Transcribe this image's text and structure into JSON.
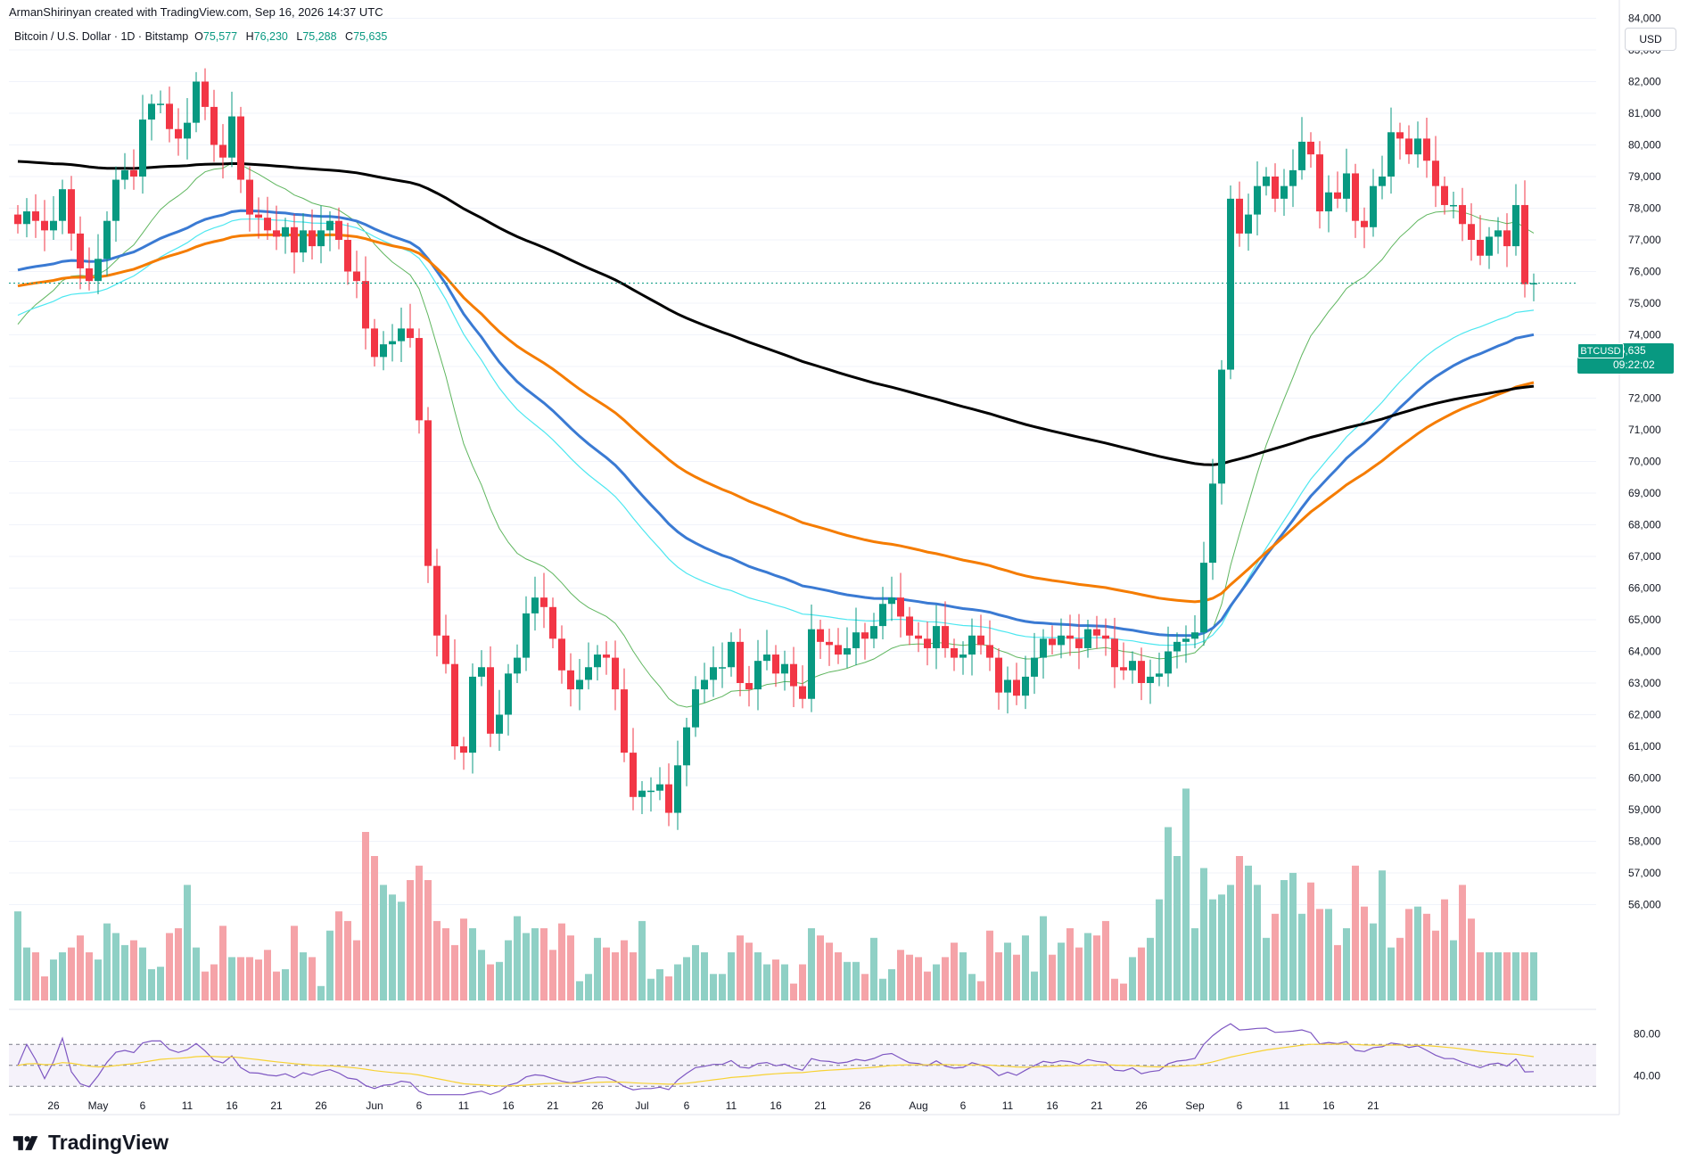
{
  "header": {
    "author_line": "ArmanShirinyan created with TradingView.com, Sep 16, 2026 14:37 UTC",
    "symbol_desc": "Bitcoin / U.S. Dollar · 1D · Bitstamp",
    "o_label": "O",
    "o_value": "75,577",
    "h_label": "H",
    "h_value": "76,230",
    "l_label": "L",
    "l_value": "75,288",
    "c_label": "C",
    "c_value": "75,635"
  },
  "currency_button": "USD",
  "price_tag": {
    "symbol": "BTCUSD",
    "price": "75,635",
    "countdown": "09:22:02"
  },
  "brand": "TradingView",
  "colors": {
    "up": "#089981",
    "down": "#f23645",
    "vol_up": "#8fd0c5",
    "vol_down": "#f5a3a8",
    "sma200": "#000000",
    "ema_blue": "#3a7ad3",
    "ema_orange": "#f57c00",
    "ma_cyan": "#4de7f0",
    "ma_green": "#5fb65f",
    "rsi": "#7e57c2",
    "rsi_ma": "#f7d233"
  },
  "chart_data": {
    "type": "candlestick",
    "price_axis": {
      "ticks": [
        84000,
        83000,
        82000,
        81000,
        80000,
        79000,
        78000,
        77000,
        76000,
        75000,
        74000,
        73000,
        72000,
        71000,
        70000,
        69000,
        68000,
        67000,
        66000,
        65000,
        64000,
        63000,
        62000,
        61000,
        60000,
        59000,
        58000,
        57000,
        56000
      ],
      "tick_labels": [
        "84,000",
        "83,000",
        "82,000",
        "81,000",
        "80,000",
        "79,000",
        "78,000",
        "77,000",
        "76,000",
        "75,000",
        "74,000",
        "73,000",
        "72,000",
        "71,000",
        "70,000",
        "69,000",
        "68,000",
        "67,000",
        "66,000",
        "65,000",
        "64,000",
        "63,000",
        "62,000",
        "61,000",
        "60,000",
        "59,000",
        "58,000",
        "57,000",
        "56,000"
      ]
    },
    "time_axis": {
      "labels": [
        "26",
        "May",
        "6",
        "11",
        "16",
        "21",
        "26",
        "Jun",
        "6",
        "11",
        "16",
        "21",
        "26",
        "Jul",
        "6",
        "11",
        "16",
        "21",
        "26",
        "Aug",
        "6",
        "11",
        "16",
        "21",
        "26",
        "Sep",
        "6",
        "11",
        "16",
        "21"
      ],
      "label_days": [
        -5,
        0,
        5,
        10,
        15,
        20,
        25,
        31,
        36,
        41,
        46,
        51,
        56,
        61,
        66,
        71,
        76,
        81,
        86,
        92,
        97,
        102,
        107,
        112,
        117,
        123,
        128,
        133,
        138,
        143
      ]
    },
    "rsi_axis": {
      "ticks": [
        80,
        40
      ],
      "tick_labels": [
        "80.00",
        "40.00"
      ],
      "bands": [
        70,
        50,
        30
      ]
    },
    "ohlc_close_path": [
      [
        -9,
        77500
      ],
      [
        -8,
        77900
      ],
      [
        -7,
        77600
      ],
      [
        -6,
        77300
      ],
      [
        -5,
        77600
      ],
      [
        -4,
        78600
      ],
      [
        -3,
        77200
      ],
      [
        -2,
        76100
      ],
      [
        -1,
        75700
      ],
      [
        0,
        76400
      ],
      [
        1,
        77600
      ],
      [
        2,
        78900
      ],
      [
        3,
        79200
      ],
      [
        4,
        79000
      ],
      [
        5,
        80800
      ],
      [
        6,
        81300
      ],
      [
        7,
        81300
      ],
      [
        8,
        80500
      ],
      [
        9,
        80200
      ],
      [
        10,
        80700
      ],
      [
        11,
        82000
      ],
      [
        12,
        81200
      ],
      [
        13,
        80000
      ],
      [
        14,
        79600
      ],
      [
        15,
        80900
      ],
      [
        16,
        78900
      ],
      [
        17,
        77800
      ],
      [
        18,
        77700
      ],
      [
        19,
        77300
      ],
      [
        20,
        77100
      ],
      [
        21,
        77400
      ],
      [
        22,
        76600
      ],
      [
        23,
        77300
      ],
      [
        24,
        76800
      ],
      [
        25,
        77300
      ],
      [
        26,
        77600
      ],
      [
        27,
        77000
      ],
      [
        28,
        76000
      ],
      [
        29,
        75700
      ],
      [
        30,
        74200
      ],
      [
        31,
        73300
      ],
      [
        32,
        73700
      ],
      [
        33,
        73800
      ],
      [
        34,
        74200
      ],
      [
        35,
        73900
      ],
      [
        36,
        71300
      ],
      [
        37,
        66700
      ],
      [
        38,
        64500
      ],
      [
        39,
        63600
      ],
      [
        40,
        61000
      ],
      [
        41,
        60800
      ],
      [
        42,
        63200
      ],
      [
        43,
        63500
      ],
      [
        44,
        61400
      ],
      [
        45,
        62000
      ],
      [
        46,
        63300
      ],
      [
        47,
        63800
      ],
      [
        48,
        65200
      ],
      [
        49,
        65700
      ],
      [
        50,
        65400
      ],
      [
        51,
        64400
      ],
      [
        52,
        63400
      ],
      [
        53,
        62800
      ],
      [
        54,
        63100
      ],
      [
        55,
        63500
      ],
      [
        56,
        63900
      ],
      [
        57,
        63800
      ],
      [
        58,
        62800
      ],
      [
        59,
        60800
      ],
      [
        60,
        59400
      ],
      [
        61,
        59600
      ],
      [
        62,
        59600
      ],
      [
        63,
        59800
      ],
      [
        64,
        58900
      ],
      [
        65,
        60400
      ],
      [
        66,
        61600
      ],
      [
        67,
        62800
      ],
      [
        68,
        63100
      ],
      [
        69,
        63500
      ],
      [
        70,
        63500
      ],
      [
        71,
        64300
      ],
      [
        72,
        63000
      ],
      [
        73,
        62800
      ],
      [
        74,
        63700
      ],
      [
        75,
        63900
      ],
      [
        76,
        63300
      ],
      [
        77,
        63600
      ],
      [
        78,
        62900
      ],
      [
        79,
        62500
      ],
      [
        80,
        64700
      ],
      [
        81,
        64300
      ],
      [
        82,
        64200
      ],
      [
        83,
        63900
      ],
      [
        84,
        64100
      ],
      [
        85,
        64600
      ],
      [
        86,
        64400
      ],
      [
        87,
        64800
      ],
      [
        88,
        65500
      ],
      [
        89,
        65700
      ],
      [
        90,
        65100
      ],
      [
        91,
        64500
      ],
      [
        92,
        64400
      ],
      [
        93,
        64100
      ],
      [
        94,
        64800
      ],
      [
        95,
        64100
      ],
      [
        96,
        63800
      ],
      [
        97,
        63900
      ],
      [
        98,
        64500
      ],
      [
        99,
        64200
      ],
      [
        100,
        63800
      ],
      [
        101,
        62700
      ],
      [
        102,
        63100
      ],
      [
        103,
        62600
      ],
      [
        104,
        63200
      ],
      [
        105,
        63800
      ],
      [
        106,
        64400
      ],
      [
        107,
        64200
      ],
      [
        108,
        64500
      ],
      [
        109,
        64400
      ],
      [
        110,
        64100
      ],
      [
        111,
        64700
      ],
      [
        112,
        64500
      ],
      [
        113,
        64400
      ],
      [
        114,
        63500
      ],
      [
        115,
        63400
      ],
      [
        116,
        63700
      ],
      [
        117,
        63000
      ],
      [
        118,
        63200
      ],
      [
        119,
        63300
      ],
      [
        120,
        64000
      ],
      [
        121,
        64300
      ],
      [
        122,
        64400
      ],
      [
        123,
        64600
      ],
      [
        124,
        66800
      ],
      [
        125,
        69300
      ],
      [
        126,
        72900
      ],
      [
        127,
        78300
      ],
      [
        128,
        77200
      ],
      [
        129,
        77800
      ],
      [
        130,
        78700
      ],
      [
        131,
        79000
      ],
      [
        132,
        78300
      ],
      [
        133,
        78700
      ],
      [
        134,
        79200
      ],
      [
        135,
        80100
      ],
      [
        136,
        79700
      ],
      [
        137,
        77900
      ],
      [
        138,
        78500
      ],
      [
        139,
        78300
      ],
      [
        140,
        79100
      ],
      [
        141,
        77600
      ],
      [
        142,
        77400
      ],
      [
        143,
        78700
      ],
      [
        144,
        79000
      ],
      [
        145,
        80400
      ],
      [
        146,
        80200
      ],
      [
        147,
        79700
      ],
      [
        148,
        80200
      ],
      [
        149,
        79500
      ],
      [
        150,
        78700
      ],
      [
        151,
        78100
      ],
      [
        152,
        78100
      ],
      [
        153,
        77500
      ],
      [
        154,
        77000
      ],
      [
        155,
        76500
      ],
      [
        156,
        77100
      ],
      [
        157,
        77300
      ],
      [
        158,
        76800
      ],
      [
        159,
        78100
      ],
      [
        160,
        75600
      ],
      [
        161,
        75635
      ]
    ],
    "volume": [
      0.37,
      0.22,
      0.2,
      0.1,
      0.17,
      0.2,
      0.22,
      0.27,
      0.2,
      0.17,
      0.32,
      0.28,
      0.23,
      0.25,
      0.22,
      0.13,
      0.14,
      0.28,
      0.3,
      0.48,
      0.22,
      0.12,
      0.15,
      0.31,
      0.18,
      0.18,
      0.18,
      0.17,
      0.21,
      0.12,
      0.13,
      0.31,
      0.2,
      0.18,
      0.06,
      0.29,
      0.37,
      0.33,
      0.25,
      0.7,
      0.6,
      0.48,
      0.44,
      0.41,
      0.5,
      0.56,
      0.5,
      0.33,
      0.3,
      0.23,
      0.34,
      0.3,
      0.21,
      0.15,
      0.16,
      0.25,
      0.35,
      0.28,
      0.3,
      0.3,
      0.21,
      0.32,
      0.27,
      0.08,
      0.11,
      0.26,
      0.22,
      0.2,
      0.25,
      0.2,
      0.33,
      0.09,
      0.13,
      0.1,
      0.15,
      0.18,
      0.23,
      0.2,
      0.11,
      0.11,
      0.2,
      0.27,
      0.24,
      0.2,
      0.15,
      0.17,
      0.15,
      0.07,
      0.15,
      0.3,
      0.27,
      0.24,
      0.2,
      0.16,
      0.16,
      0.11,
      0.26,
      0.09,
      0.13,
      0.21,
      0.19,
      0.18,
      0.12,
      0.15,
      0.18,
      0.24,
      0.2,
      0.11,
      0.08,
      0.29,
      0.2,
      0.24,
      0.19,
      0.27,
      0.12,
      0.35,
      0.19,
      0.24,
      0.3,
      0.22,
      0.28,
      0.27,
      0.33,
      0.09,
      0.07,
      0.18,
      0.22,
      0.26,
      0.42,
      0.72,
      0.6,
      0.88,
      0.3,
      0.55,
      0.42,
      0.44,
      0.48,
      0.6,
      0.56,
      0.48,
      0.26,
      0.36,
      0.5,
      0.53,
      0.36,
      0.49,
      0.38,
      0.38,
      0.23,
      0.3,
      0.56,
      0.39,
      0.32,
      0.54,
      0.22,
      0.26,
      0.38,
      0.39,
      0.36,
      0.29,
      0.42,
      0.25,
      0.48,
      0.34,
      0.2
    ]
  }
}
